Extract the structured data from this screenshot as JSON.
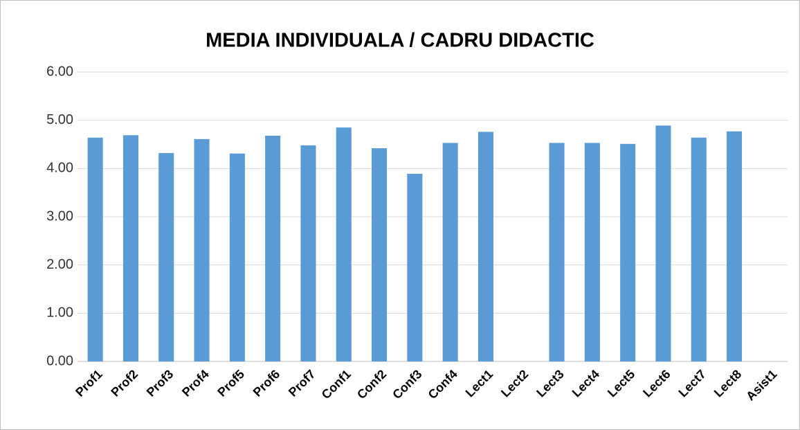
{
  "chart_data": {
    "type": "bar",
    "title": "MEDIA INDIVIDUALA / CADRU DIDACTIC",
    "categories": [
      "Prof1",
      "Prof2",
      "Prof3",
      "Prof4",
      "Prof5",
      "Prof6",
      "Prof7",
      "Conf1",
      "Conf2",
      "Conf3",
      "Conf4",
      "Lect1",
      "Lect2",
      "Lect3",
      "Lect4",
      "Lect5",
      "Lect6",
      "Lect7",
      "Lect8",
      "Asist1"
    ],
    "values": [
      4.64,
      4.69,
      4.32,
      4.61,
      4.31,
      4.68,
      4.48,
      4.85,
      4.42,
      3.89,
      4.53,
      4.76,
      null,
      4.53,
      4.53,
      4.51,
      4.89,
      4.64,
      4.77,
      null
    ],
    "color": "#5b9bd5",
    "ylim": [
      0,
      6
    ],
    "yticks": [
      {
        "value": 0,
        "label": "0.00"
      },
      {
        "value": 1,
        "label": "1.00"
      },
      {
        "value": 2,
        "label": "2.00"
      },
      {
        "value": 3,
        "label": "3.00"
      },
      {
        "value": 4,
        "label": "4.00"
      },
      {
        "value": 5,
        "label": "5.00"
      },
      {
        "value": 6,
        "label": "6.00"
      }
    ],
    "grid": true
  }
}
